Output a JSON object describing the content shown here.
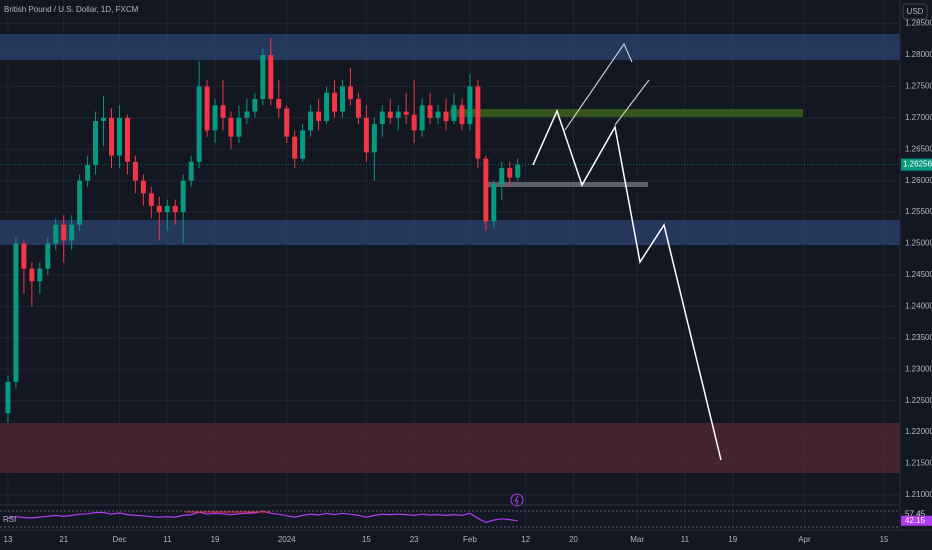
{
  "chart_data": {
    "type": "candlestick",
    "title": "British Pound / U.S. Dollar, 1D, FXCM",
    "currency": "USD",
    "up_color": "#089981",
    "down_color": "#f23645",
    "grid": true,
    "x": [
      0,
      1,
      2,
      3,
      4,
      5,
      6,
      7,
      8,
      9,
      10,
      11,
      12,
      13,
      14,
      15,
      16,
      17,
      18,
      19,
      20,
      21,
      22,
      23,
      24,
      25,
      26,
      27,
      28,
      29,
      30,
      31,
      32,
      33,
      34,
      35,
      36,
      37,
      38,
      39,
      40,
      41,
      42,
      43,
      44,
      45,
      46,
      47,
      48,
      49,
      50,
      51,
      52,
      53,
      54,
      55,
      56,
      57,
      58,
      59,
      60,
      61,
      62,
      63,
      64
    ],
    "open": [
      1.223,
      1.228,
      1.25,
      1.246,
      1.244,
      1.246,
      1.25,
      1.253,
      1.2505,
      1.253,
      1.26,
      1.2625,
      1.2695,
      1.27,
      1.264,
      1.27,
      1.263,
      1.26,
      1.258,
      1.256,
      1.255,
      1.256,
      1.255,
      1.26,
      1.263,
      1.275,
      1.268,
      1.272,
      1.27,
      1.267,
      1.27,
      1.271,
      1.273,
      1.28,
      1.273,
      1.2715,
      1.267,
      1.2635,
      1.268,
      1.271,
      1.2695,
      1.274,
      1.271,
      1.275,
      1.273,
      1.27,
      1.2645,
      1.269,
      1.271,
      1.27,
      1.271,
      1.2705,
      1.268,
      1.272,
      1.27,
      1.271,
      1.2695,
      1.272,
      1.269,
      1.275,
      1.2635,
      1.2535,
      1.2594,
      1.262,
      1.2605
    ],
    "high": [
      1.229,
      1.251,
      1.2505,
      1.247,
      1.247,
      1.251,
      1.254,
      1.2545,
      1.2545,
      1.261,
      1.264,
      1.271,
      1.2735,
      1.2715,
      1.272,
      1.2705,
      1.264,
      1.261,
      1.259,
      1.2575,
      1.257,
      1.257,
      1.261,
      1.264,
      1.279,
      1.276,
      1.273,
      1.276,
      1.271,
      1.272,
      1.273,
      1.274,
      1.281,
      1.2827,
      1.276,
      1.272,
      1.268,
      1.269,
      1.272,
      1.273,
      1.275,
      1.276,
      1.276,
      1.278,
      1.274,
      1.272,
      1.27,
      1.272,
      1.273,
      1.272,
      1.274,
      1.276,
      1.273,
      1.274,
      1.272,
      1.273,
      1.274,
      1.273,
      1.277,
      1.276,
      1.264,
      1.26,
      1.263,
      1.263,
      1.2635
    ],
    "low": [
      1.2215,
      1.227,
      1.242,
      1.24,
      1.242,
      1.245,
      1.249,
      1.247,
      1.249,
      1.252,
      1.259,
      1.261,
      1.2655,
      1.262,
      1.262,
      1.261,
      1.258,
      1.256,
      1.254,
      1.2505,
      1.252,
      1.253,
      1.25,
      1.259,
      1.262,
      1.267,
      1.266,
      1.268,
      1.265,
      1.266,
      1.269,
      1.27,
      1.272,
      1.272,
      1.27,
      1.266,
      1.262,
      1.263,
      1.267,
      1.268,
      1.269,
      1.27,
      1.27,
      1.272,
      1.269,
      1.263,
      1.26,
      1.267,
      1.269,
      1.268,
      1.269,
      1.266,
      1.267,
      1.269,
      1.269,
      1.268,
      1.269,
      1.268,
      1.268,
      1.262,
      1.252,
      1.2525,
      1.257,
      1.259,
      1.26
    ],
    "close": [
      1.228,
      1.25,
      1.246,
      1.244,
      1.246,
      1.25,
      1.253,
      1.2505,
      1.253,
      1.26,
      1.2625,
      1.2695,
      1.27,
      1.264,
      1.27,
      1.263,
      1.26,
      1.258,
      1.256,
      1.255,
      1.256,
      1.255,
      1.26,
      1.263,
      1.275,
      1.268,
      1.272,
      1.27,
      1.267,
      1.27,
      1.271,
      1.273,
      1.28,
      1.273,
      1.2715,
      1.267,
      1.2635,
      1.268,
      1.271,
      1.2695,
      1.274,
      1.271,
      1.275,
      1.273,
      1.27,
      1.2645,
      1.269,
      1.271,
      1.27,
      1.271,
      1.2705,
      1.268,
      1.272,
      1.27,
      1.271,
      1.2695,
      1.272,
      1.269,
      1.275,
      1.2635,
      1.2535,
      1.2594,
      1.262,
      1.2605,
      1.26256
    ],
    "xlim": [
      -1,
      112
    ],
    "xticks": [
      {
        "value": 0,
        "label": "13"
      },
      {
        "value": 7,
        "label": "21"
      },
      {
        "value": 14,
        "label": "Dec"
      },
      {
        "value": 20,
        "label": "11"
      },
      {
        "value": 26,
        "label": "19"
      },
      {
        "value": 35,
        "label": "2024"
      },
      {
        "value": 45,
        "label": "15"
      },
      {
        "value": 51,
        "label": "23"
      },
      {
        "value": 58,
        "label": "Feb"
      },
      {
        "value": 65,
        "label": "12"
      },
      {
        "value": 71,
        "label": "20"
      },
      {
        "value": 79,
        "label": "Mar"
      },
      {
        "value": 85,
        "label": "11"
      },
      {
        "value": 91,
        "label": "19"
      },
      {
        "value": 100,
        "label": "Apr"
      },
      {
        "value": 110,
        "label": "15"
      }
    ],
    "ylim": [
      1.2084,
      1.28875
    ],
    "yticks": [
      {
        "value": 1.285,
        "label": "1.28500"
      },
      {
        "value": 1.28,
        "label": "1.28000"
      },
      {
        "value": 1.275,
        "label": "1.27500"
      },
      {
        "value": 1.27,
        "label": "1.27000"
      },
      {
        "value": 1.265,
        "label": "1.26500"
      },
      {
        "value": 1.26,
        "label": "1.26000"
      },
      {
        "value": 1.255,
        "label": "1.25500"
      },
      {
        "value": 1.25,
        "label": "1.25000"
      },
      {
        "value": 1.245,
        "label": "1.24500"
      },
      {
        "value": 1.24,
        "label": "1.24000"
      },
      {
        "value": 1.235,
        "label": "1.23500"
      },
      {
        "value": 1.23,
        "label": "1.23000"
      },
      {
        "value": 1.225,
        "label": "1.22500"
      },
      {
        "value": 1.22,
        "label": "1.22000"
      },
      {
        "value": 1.215,
        "label": "1.21500"
      },
      {
        "value": 1.21,
        "label": "1.21000"
      }
    ],
    "rsi": {
      "name": "RSI",
      "color": "#b23cf0",
      "ylim": [
        20,
        80
      ],
      "ma_value": 57.45,
      "values": [
        48,
        52,
        50,
        49,
        51,
        53,
        55,
        53,
        55,
        58,
        59,
        62,
        62,
        58,
        61,
        57,
        55,
        54,
        52,
        51,
        52,
        51,
        55,
        57,
        63,
        58,
        60,
        59,
        57,
        59,
        60,
        61,
        65,
        60,
        58,
        54,
        51,
        55,
        58,
        56,
        60,
        57,
        60,
        58,
        55,
        51,
        55,
        58,
        57,
        58,
        57,
        55,
        58,
        56,
        57,
        55,
        57,
        55,
        60,
        48,
        38,
        44,
        47,
        45,
        42.15
      ]
    }
  }
}
